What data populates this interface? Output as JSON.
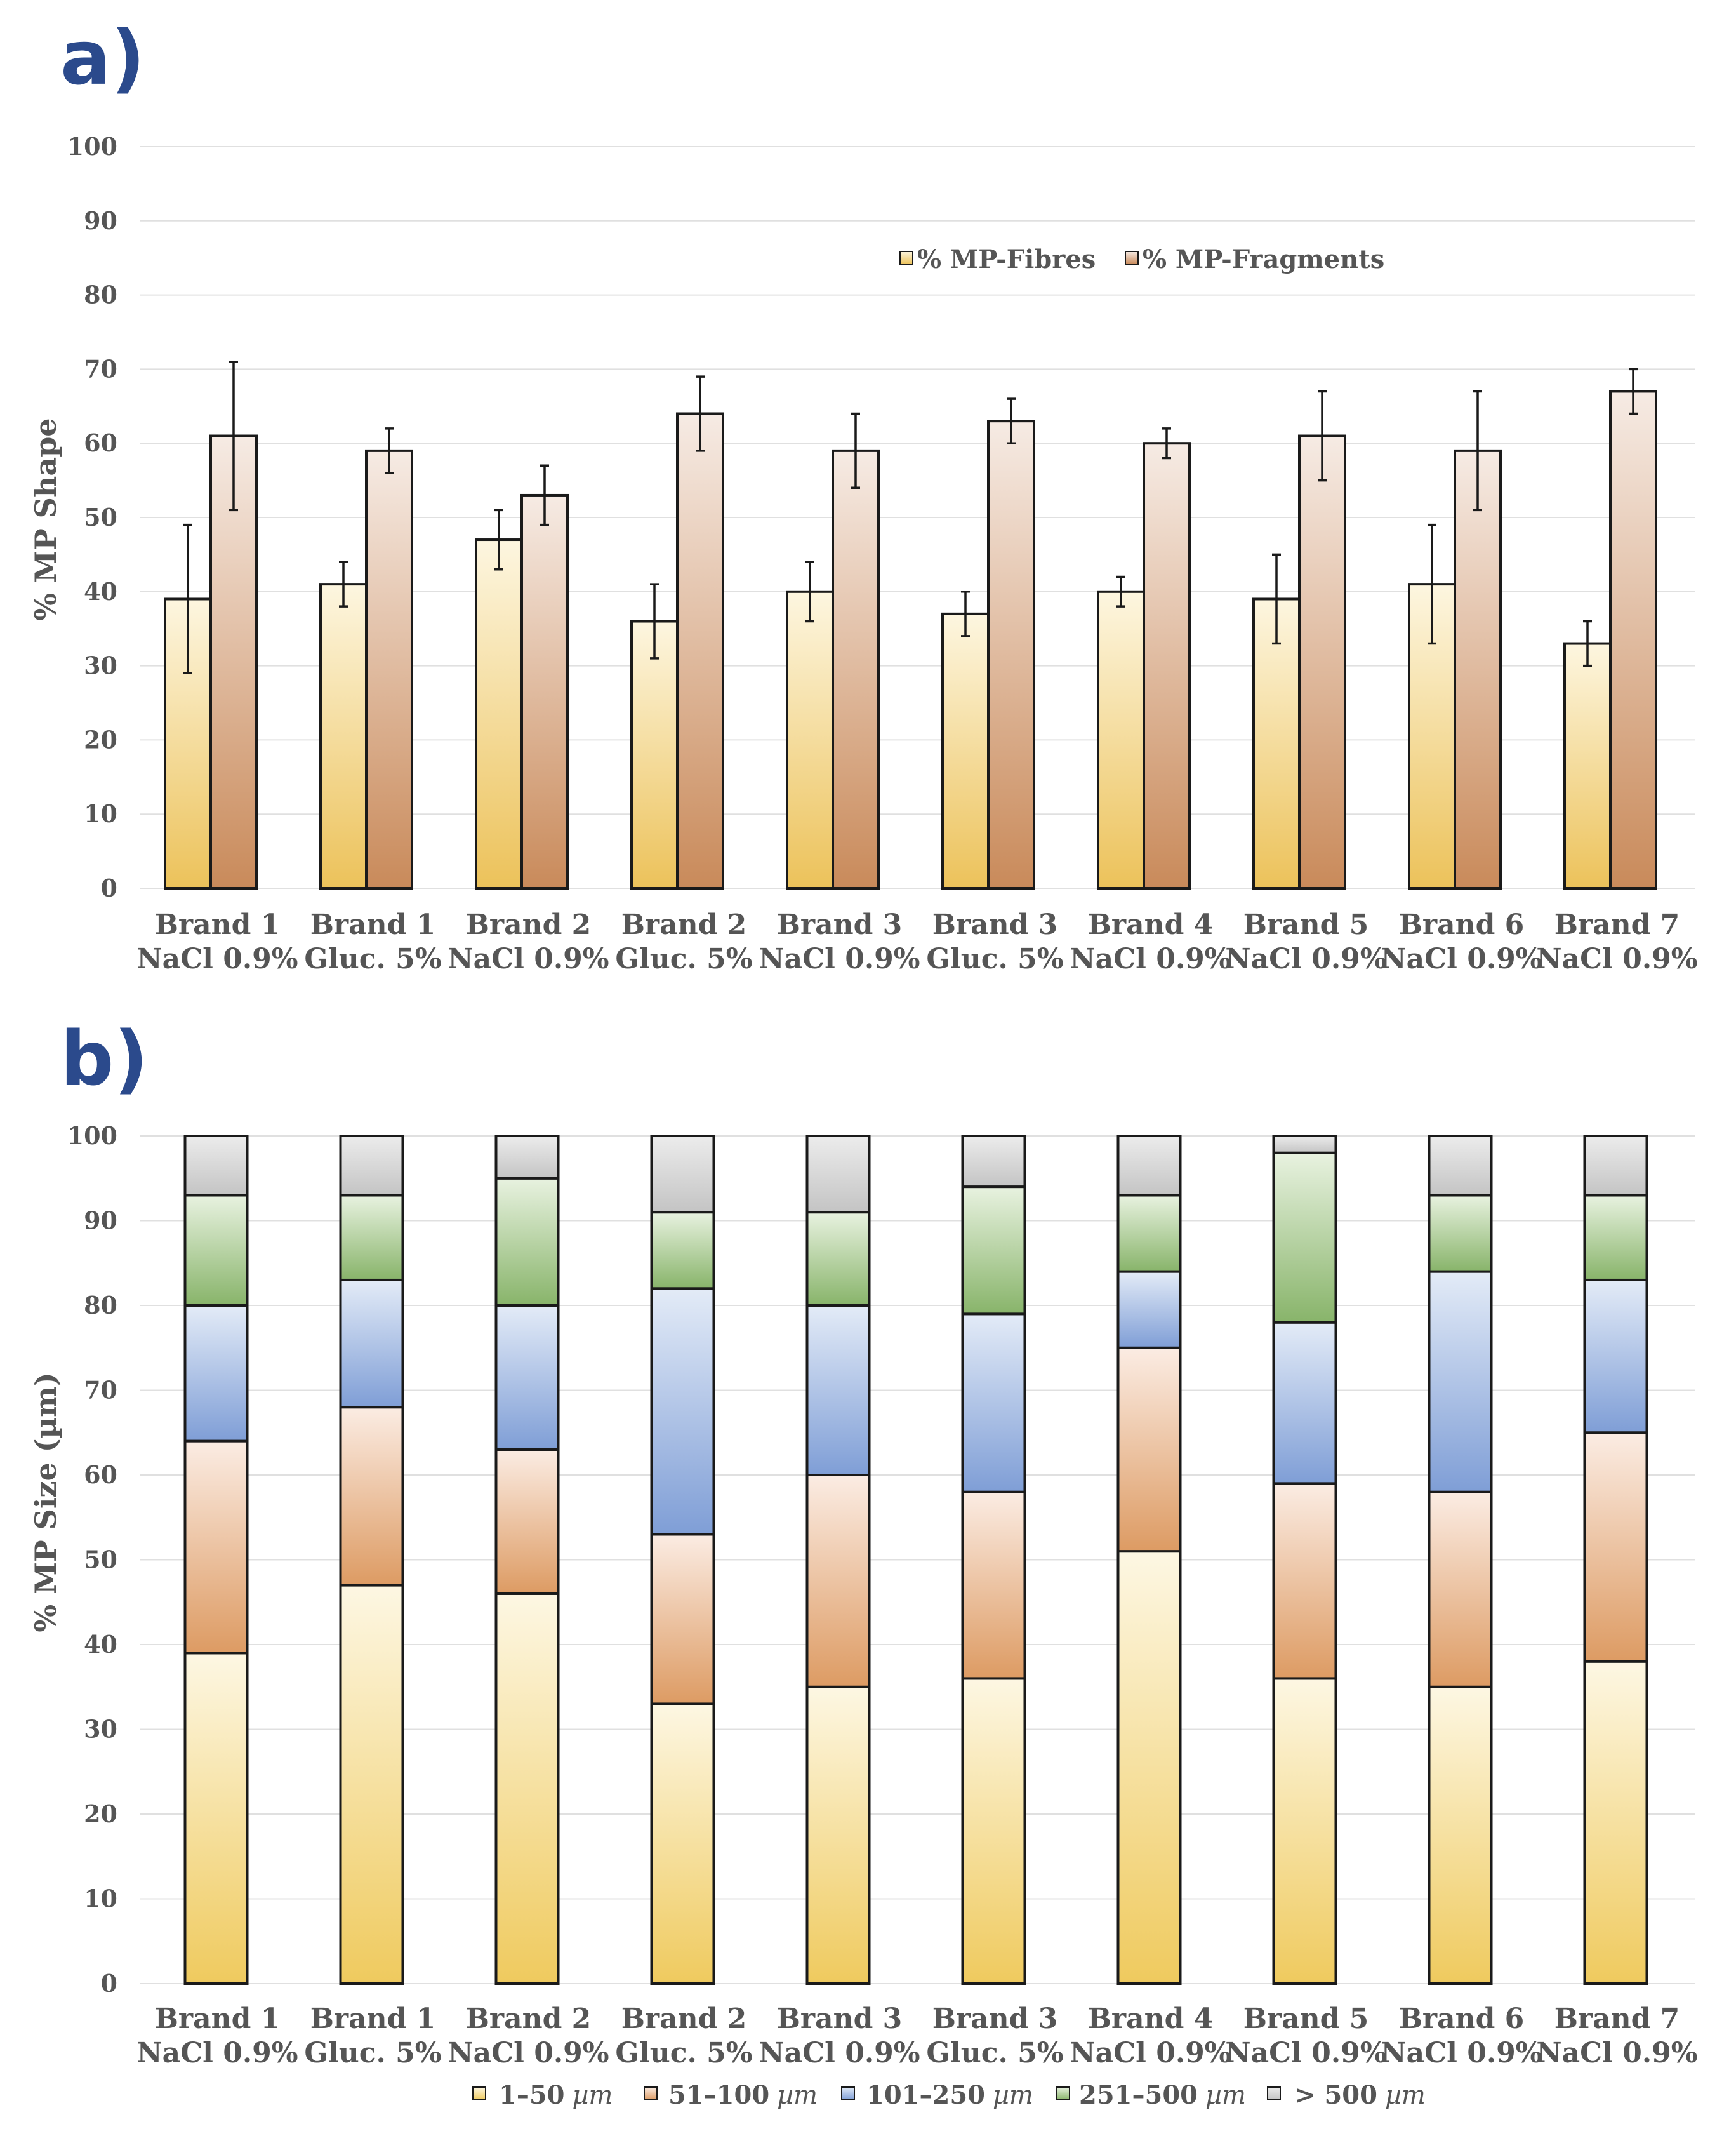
{
  "colors": {
    "fibres_top": "#fdf6e0",
    "fibres_bottom": "#ecc25a",
    "fragments_top": "#f6ebe4",
    "fragments_bottom": "#c98a5a",
    "s1_top": "#fdf7e3",
    "s1_bottom": "#efca5e",
    "s2_top": "#fbece3",
    "s2_bottom": "#dd9b63",
    "s3_top": "#e3ebf7",
    "s3_bottom": "#7f9ed6",
    "s4_top": "#e8f2e0",
    "s4_bottom": "#88b46a",
    "s5_top": "#ececec",
    "s5_bottom": "#c4c4c4",
    "axis_text": "#555555",
    "panel_label": "#2b4a8c"
  },
  "chart_data": [
    {
      "panel_label": "a)",
      "type": "bar",
      "ylabel": "% MP Shape",
      "ylim": [
        0,
        100
      ],
      "yticks": [
        "0",
        "10",
        "20",
        "30",
        "40",
        "50",
        "60",
        "70",
        "80",
        "90",
        "100"
      ],
      "categories": [
        [
          "Brand 1",
          "NaCl 0.9%"
        ],
        [
          "Brand 1",
          "Gluc. 5%"
        ],
        [
          "Brand 2",
          "NaCl 0.9%"
        ],
        [
          "Brand 2",
          "Gluc. 5%"
        ],
        [
          "Brand 3",
          "NaCl 0.9%"
        ],
        [
          "Brand 3",
          "Gluc. 5%"
        ],
        [
          "Brand 4",
          "NaCl 0.9%"
        ],
        [
          "Brand 5",
          "NaCl 0.9%"
        ],
        [
          "Brand 6",
          "NaCl 0.9%"
        ],
        [
          "Brand 7",
          "NaCl 0.9%"
        ]
      ],
      "series": [
        {
          "name": "% MP-Fibres",
          "values": [
            39,
            41,
            47,
            36,
            40,
            37,
            40,
            39,
            41,
            33
          ],
          "errors": [
            10,
            3,
            4,
            5,
            4,
            3,
            2,
            6,
            8,
            3
          ]
        },
        {
          "name": "% MP-Fragments",
          "values": [
            61,
            59,
            53,
            64,
            59,
            63,
            60,
            61,
            59,
            67
          ],
          "errors": [
            10,
            3,
            4,
            5,
            5,
            3,
            2,
            6,
            8,
            3
          ]
        }
      ],
      "legend": "top-right"
    },
    {
      "panel_label": "b)",
      "type": "bar",
      "stacked": true,
      "ylabel": "% MP Size (µm)",
      "ylim": [
        0,
        100
      ],
      "yticks": [
        "0",
        "10",
        "20",
        "30",
        "40",
        "50",
        "60",
        "70",
        "80",
        "90",
        "100"
      ],
      "categories": [
        [
          "Brand 1",
          "NaCl 0.9%"
        ],
        [
          "Brand 1",
          "Gluc. 5%"
        ],
        [
          "Brand 2",
          "NaCl 0.9%"
        ],
        [
          "Brand 2",
          "Gluc. 5%"
        ],
        [
          "Brand 3",
          "NaCl 0.9%"
        ],
        [
          "Brand 3",
          "Gluc. 5%"
        ],
        [
          "Brand 4",
          "NaCl 0.9%"
        ],
        [
          "Brand 5",
          "NaCl 0.9%"
        ],
        [
          "Brand 6",
          "NaCl 0.9%"
        ],
        [
          "Brand 7",
          "NaCl 0.9%"
        ]
      ],
      "series": [
        {
          "name": "1–50 µm",
          "num": "1–50",
          "unit": "µm",
          "values": [
            39,
            47,
            46,
            33,
            35,
            36,
            51,
            36,
            35,
            38
          ]
        },
        {
          "name": "51–100 µm",
          "num": "51–100",
          "unit": "µm",
          "values": [
            25,
            21,
            17,
            20,
            25,
            22,
            24,
            23,
            23,
            27
          ]
        },
        {
          "name": "101–250 µm",
          "num": "101–250",
          "unit": "µm",
          "values": [
            16,
            15,
            17,
            29,
            20,
            21,
            9,
            19,
            26,
            18
          ]
        },
        {
          "name": "251–500 µm",
          "num": "251–500",
          "unit": "µm",
          "values": [
            13,
            10,
            15,
            9,
            11,
            15,
            9,
            20,
            9,
            10
          ]
        },
        {
          "name": "> 500 µm",
          "num": "> 500",
          "unit": "µm",
          "values": [
            7,
            7,
            5,
            9,
            9,
            6,
            7,
            2,
            7,
            7
          ]
        }
      ],
      "legend": "bottom"
    }
  ]
}
